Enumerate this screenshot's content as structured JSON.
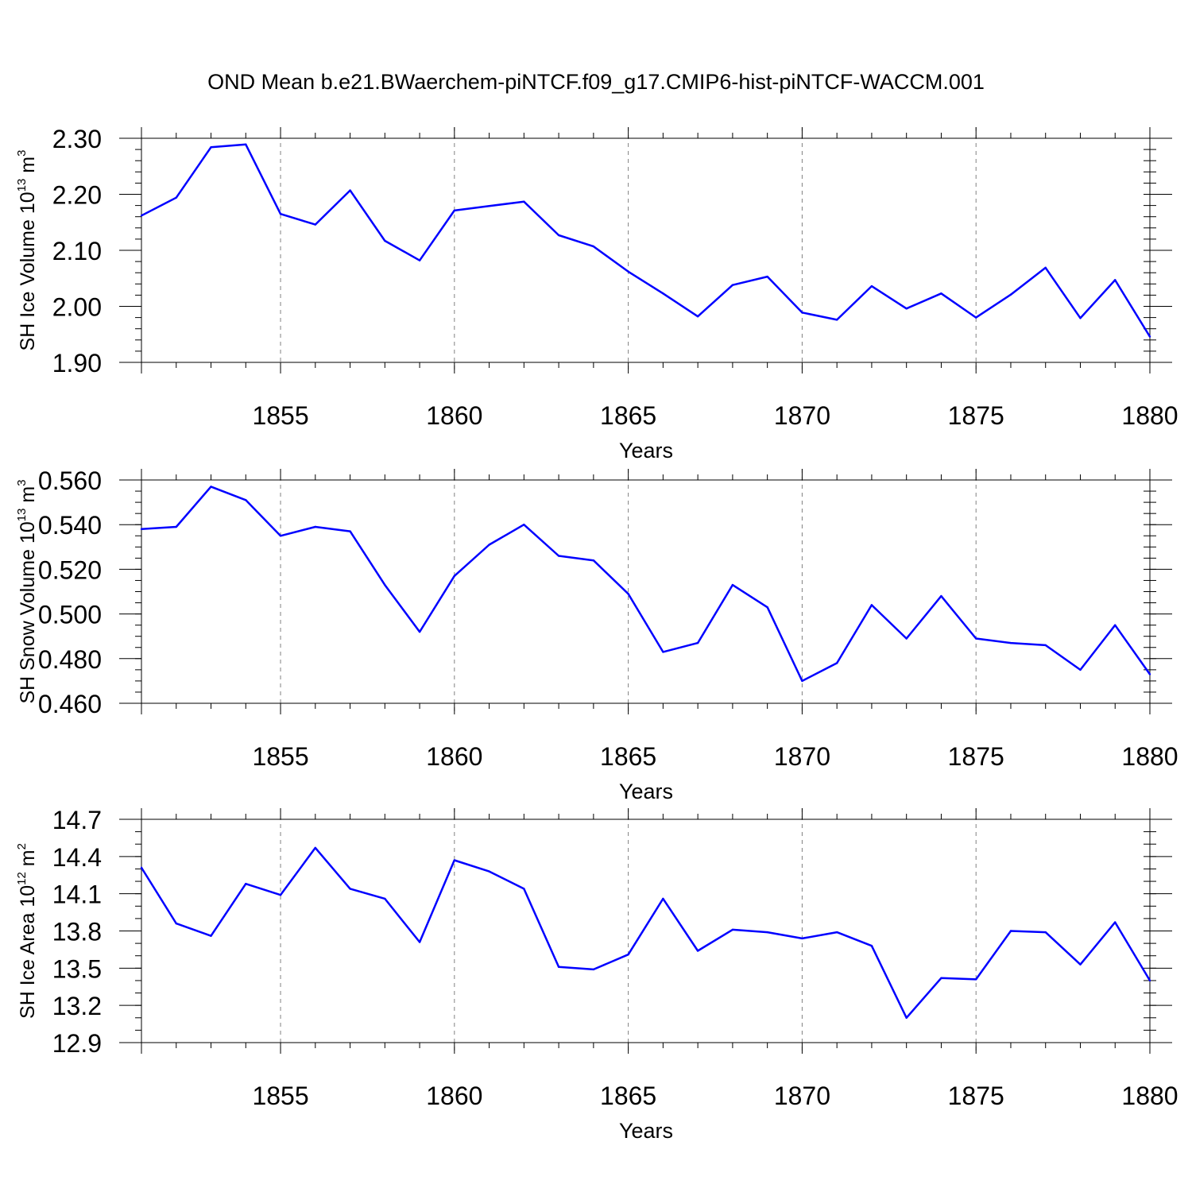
{
  "title": "OND Mean b.e21.BWaerchem-piNTCF.f09_g17.CMIP6-hist-piNTCF-WACCM.001",
  "colors": {
    "line": "#0000ff",
    "axes": "#000000",
    "grid": "#808080"
  },
  "chart_data": [
    {
      "type": "line",
      "ylabel_parts": {
        "text": "SH Ice Volume 10",
        "exp1": "13",
        "mid": " m",
        "exp2": "3"
      },
      "xlabel": "Years",
      "xlim": [
        1851,
        1880
      ],
      "ylim": [
        1.9,
        2.3
      ],
      "xticks": [
        1855,
        1860,
        1865,
        1870,
        1875,
        1880
      ],
      "yticks": [
        "1.90",
        "2.00",
        "2.10",
        "2.20",
        "2.30"
      ],
      "yminor_step": 0.02,
      "series": [
        {
          "name": "SH Ice Volume",
          "x": [
            1851,
            1852,
            1853,
            1854,
            1855,
            1856,
            1857,
            1858,
            1859,
            1860,
            1861,
            1862,
            1863,
            1864,
            1865,
            1866,
            1867,
            1868,
            1869,
            1870,
            1871,
            1872,
            1873,
            1874,
            1875,
            1876,
            1877,
            1878,
            1879,
            1880
          ],
          "y": [
            2.162,
            2.194,
            2.284,
            2.289,
            2.165,
            2.146,
            2.207,
            2.117,
            2.082,
            2.171,
            2.179,
            2.187,
            2.127,
            2.107,
            2.062,
            2.023,
            1.982,
            2.038,
            2.053,
            1.989,
            1.976,
            2.036,
            1.996,
            2.023,
            1.98,
            2.021,
            2.069,
            1.979,
            2.047,
            1.946
          ]
        }
      ]
    },
    {
      "type": "line",
      "ylabel_parts": {
        "text": "SH Snow Volume 10",
        "exp1": "13",
        "mid": " m",
        "exp2": "3"
      },
      "xlabel": "Years",
      "xlim": [
        1851,
        1880
      ],
      "ylim": [
        0.46,
        0.56
      ],
      "xticks": [
        1855,
        1860,
        1865,
        1870,
        1875,
        1880
      ],
      "yticks": [
        "0.460",
        "0.480",
        "0.500",
        "0.520",
        "0.540",
        "0.560"
      ],
      "yminor_step": 0.005,
      "series": [
        {
          "name": "SH Snow Volume",
          "x": [
            1851,
            1852,
            1853,
            1854,
            1855,
            1856,
            1857,
            1858,
            1859,
            1860,
            1861,
            1862,
            1863,
            1864,
            1865,
            1866,
            1867,
            1868,
            1869,
            1870,
            1871,
            1872,
            1873,
            1874,
            1875,
            1876,
            1877,
            1878,
            1879,
            1880
          ],
          "y": [
            0.538,
            0.539,
            0.557,
            0.551,
            0.535,
            0.539,
            0.537,
            0.513,
            0.492,
            0.517,
            0.531,
            0.54,
            0.526,
            0.524,
            0.509,
            0.483,
            0.487,
            0.513,
            0.503,
            0.47,
            0.478,
            0.504,
            0.489,
            0.508,
            0.489,
            0.487,
            0.486,
            0.475,
            0.495,
            0.473
          ]
        }
      ]
    },
    {
      "type": "line",
      "ylabel_parts": {
        "text": "SH Ice Area 10",
        "exp1": "12",
        "mid": " m",
        "exp2": "2"
      },
      "xlabel": "Years",
      "xlim": [
        1851,
        1880
      ],
      "ylim": [
        12.9,
        14.7
      ],
      "xticks": [
        1855,
        1860,
        1865,
        1870,
        1875,
        1880
      ],
      "yticks": [
        "12.9",
        "13.2",
        "13.5",
        "13.8",
        "14.1",
        "14.4",
        "14.7"
      ],
      "yminor_step": 0.1,
      "series": [
        {
          "name": "SH Ice Area",
          "x": [
            1851,
            1852,
            1853,
            1854,
            1855,
            1856,
            1857,
            1858,
            1859,
            1860,
            1861,
            1862,
            1863,
            1864,
            1865,
            1866,
            1867,
            1868,
            1869,
            1870,
            1871,
            1872,
            1873,
            1874,
            1875,
            1876,
            1877,
            1878,
            1879,
            1880
          ],
          "y": [
            14.31,
            13.86,
            13.76,
            14.18,
            14.09,
            14.47,
            14.14,
            14.06,
            13.71,
            14.37,
            14.28,
            14.14,
            13.51,
            13.49,
            13.61,
            14.06,
            13.64,
            13.81,
            13.79,
            13.74,
            13.79,
            13.68,
            13.1,
            13.42,
            13.41,
            13.8,
            13.79,
            13.53,
            13.87,
            13.4
          ]
        }
      ]
    }
  ]
}
